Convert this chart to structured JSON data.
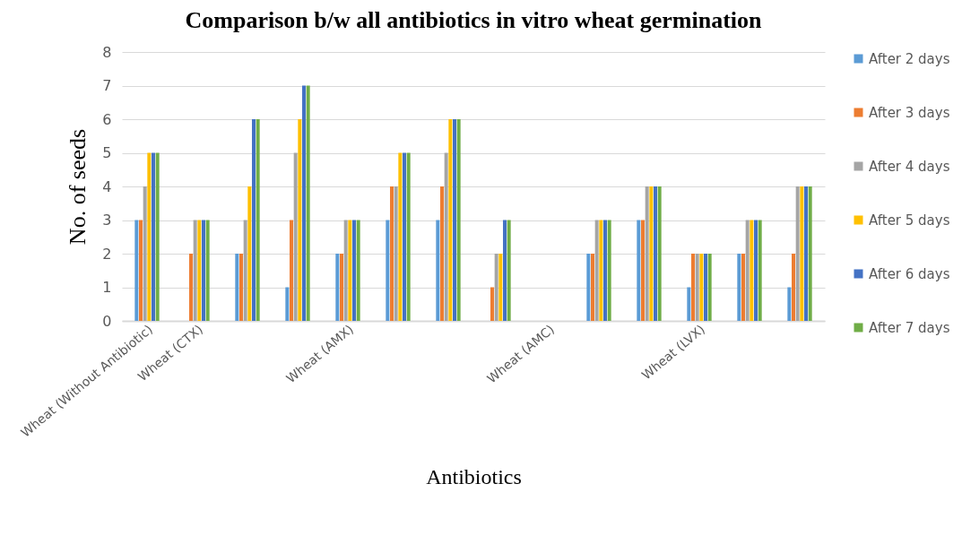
{
  "chart_data": {
    "type": "bar",
    "title": "Comparison b/w all antibiotics in vitro wheat germination",
    "xlabel": "Antibiotics",
    "ylabel": "No. of seeds",
    "categories": [
      "Wheat (Without Antibiotic)",
      "Wheat (CTX)",
      null,
      null,
      "Wheat (AMX)",
      null,
      null,
      null,
      "Wheat (AMC)",
      null,
      null,
      "Wheat (LVX)",
      null,
      null
    ],
    "series": [
      {
        "name": "After 2 days",
        "color": "#5b9bd5",
        "values": [
          3,
          0,
          2,
          1,
          2,
          3,
          3,
          0,
          0,
          2,
          3,
          1,
          2,
          1
        ]
      },
      {
        "name": "After 3 days",
        "color": "#ed7d31",
        "values": [
          3,
          2,
          2,
          3,
          2,
          4,
          4,
          1,
          0,
          2,
          3,
          2,
          2,
          2
        ]
      },
      {
        "name": "After 4 days",
        "color": "#a5a5a5",
        "values": [
          4,
          3,
          3,
          5,
          3,
          4,
          5,
          2,
          0,
          3,
          4,
          2,
          3,
          4
        ]
      },
      {
        "name": "After 5 days",
        "color": "#ffc000",
        "values": [
          5,
          3,
          4,
          6,
          3,
          5,
          6,
          2,
          0,
          3,
          4,
          2,
          3,
          4
        ]
      },
      {
        "name": "After 6 days",
        "color": "#4472c4",
        "values": [
          5,
          3,
          6,
          7,
          3,
          5,
          6,
          3,
          0,
          3,
          4,
          2,
          3,
          4
        ]
      },
      {
        "name": "After 7 days",
        "color": "#70ad47",
        "values": [
          5,
          3,
          6,
          7,
          3,
          5,
          6,
          3,
          0,
          3,
          4,
          2,
          3,
          4
        ]
      }
    ],
    "ylim": [
      0,
      8
    ],
    "yticks": [
      0,
      1,
      2,
      3,
      4,
      5,
      6,
      7,
      8
    ],
    "grid": "y",
    "legend": "right"
  }
}
